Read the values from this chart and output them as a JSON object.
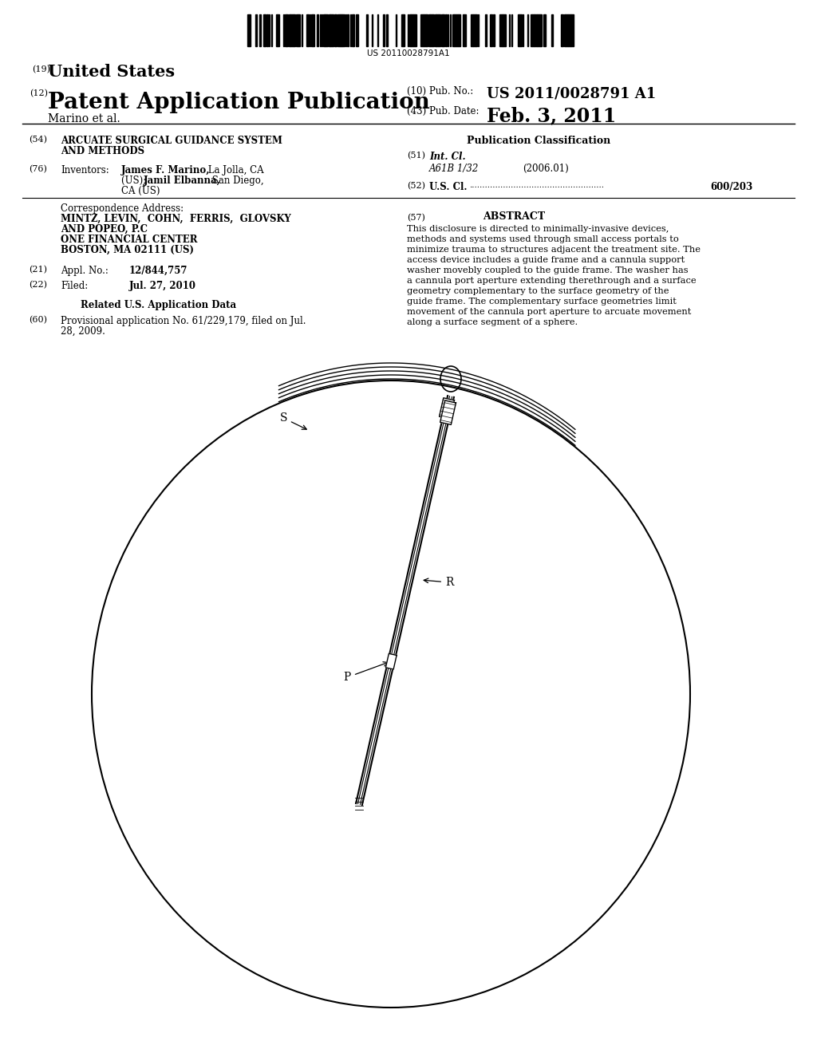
{
  "bg_color": "#ffffff",
  "barcode_text": "US 20110028791A1",
  "title_19": "(19)",
  "title_19_text": "United States",
  "title_12": "(12)",
  "title_12_text": "Patent Application Publication",
  "pub_no_label": "(10) Pub. No.:",
  "pub_no_value": "US 2011/0028791 A1",
  "pub_date_label": "(43) Pub. Date:",
  "pub_date_value": "Feb. 3, 2011",
  "author_line": "Marino et al.",
  "field54_label": "(54)",
  "field76_label": "(76)",
  "field76_key": "Inventors:",
  "corr_title": "Correspondence Address:",
  "field21_label": "(21)",
  "field21_key": "Appl. No.:",
  "field21_val": "12/844,757",
  "field22_label": "(22)",
  "field22_key": "Filed:",
  "field22_val": "Jul. 27, 2010",
  "related_title": "Related U.S. Application Data",
  "field60_label": "(60)",
  "pubclass_title": "Publication Classification",
  "field51_label": "(51)",
  "field51_key": "Int. Cl.",
  "field51_sub": "A61B 1/32",
  "field51_year": "(2006.01)",
  "field52_label": "(52)",
  "field52_key": "U.S. Cl.",
  "field52_val": "600/203",
  "field57_label": "(57)",
  "abstract_title": "ABSTRACT",
  "diagram_label_S": "S",
  "diagram_label_R": "R",
  "diagram_label_P": "P"
}
